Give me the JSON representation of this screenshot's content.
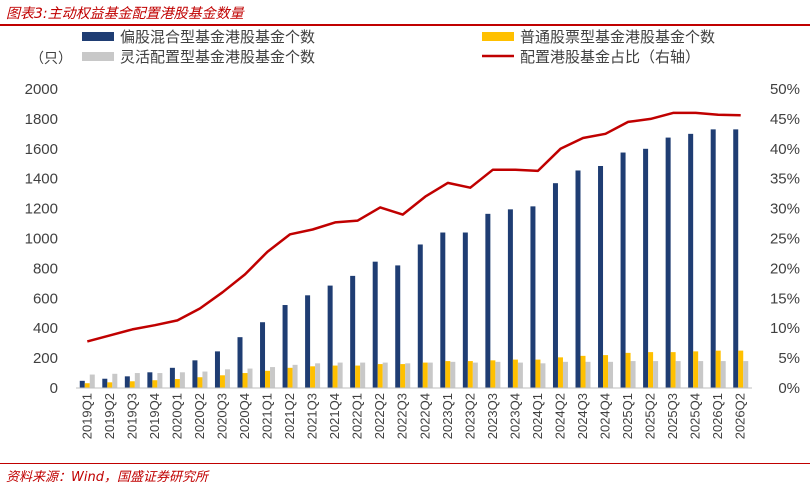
{
  "figure_label": "图表3:",
  "figure_title": "主动权益基金配置港股基金数量",
  "source": "资料来源：Wind，国盛证券研究所",
  "chart_data": {
    "type": "bar",
    "y_unit": "（只）",
    "ylim": [
      0,
      2000
    ],
    "yticks": [
      0,
      200,
      400,
      600,
      800,
      1000,
      1200,
      1400,
      1600,
      1800,
      2000
    ],
    "y2lim": [
      0,
      50
    ],
    "y2ticks": [
      "0%",
      "5%",
      "10%",
      "15%",
      "20%",
      "25%",
      "30%",
      "35%",
      "40%",
      "45%",
      "50%"
    ],
    "legend_position": "top",
    "categories": [
      "2019Q1",
      "2019Q2",
      "2019Q3",
      "2019Q4",
      "2020Q1",
      "2020Q2",
      "2020Q3",
      "2020Q4",
      "2021Q1",
      "2021Q2",
      "2021Q3",
      "2021Q4",
      "2022Q1",
      "2022Q2",
      "2022Q3",
      "2022Q4",
      "2023Q1",
      "2023Q2",
      "2023Q3",
      "2023Q4",
      "2024Q1",
      "2024Q2",
      "2024Q3",
      "2024Q4",
      "2025Q1",
      "2025Q2",
      "2025Q3",
      "2025Q4",
      "2026Q1",
      "2026Q2"
    ],
    "series": [
      {
        "name": "偏股混合型基金港股基金个数",
        "kind": "bar",
        "color": "#1f3d73",
        "values": [
          48,
          62,
          78,
          105,
          135,
          185,
          245,
          340,
          440,
          555,
          620,
          685,
          750,
          845,
          820,
          960,
          1040,
          1040,
          1165,
          1195,
          1215,
          1370,
          1455,
          1485,
          1575,
          1600,
          1675,
          1700,
          1730,
          1730
        ]
      },
      {
        "name": "普通股票型基金港股基金个数",
        "kind": "bar",
        "color": "#ffc000",
        "values": [
          32,
          38,
          45,
          52,
          60,
          72,
          85,
          100,
          115,
          135,
          145,
          150,
          150,
          160,
          160,
          170,
          180,
          180,
          185,
          190,
          190,
          205,
          215,
          220,
          235,
          240,
          240,
          245,
          250,
          250
        ]
      },
      {
        "name": "灵活配置型基金港股基金个数",
        "kind": "bar",
        "color": "#c8c8c8",
        "values": [
          90,
          95,
          100,
          100,
          105,
          110,
          125,
          130,
          140,
          155,
          165,
          170,
          170,
          170,
          165,
          170,
          175,
          170,
          175,
          170,
          165,
          175,
          175,
          175,
          180,
          180,
          180,
          180,
          180,
          180
        ]
      },
      {
        "name": "配置港股基金占比（右轴）",
        "kind": "line",
        "axis": "right",
        "color": "#c00000",
        "values": [
          7.8,
          8.8,
          9.8,
          10.5,
          11.3,
          13.3,
          16.0,
          19.0,
          22.8,
          25.7,
          26.5,
          27.7,
          28.0,
          30.2,
          29.0,
          32.0,
          34.3,
          33.5,
          36.5,
          36.5,
          36.3,
          40.0,
          41.8,
          42.5,
          44.5,
          45.0,
          46.0,
          46.0,
          45.7,
          45.6
        ]
      }
    ]
  }
}
